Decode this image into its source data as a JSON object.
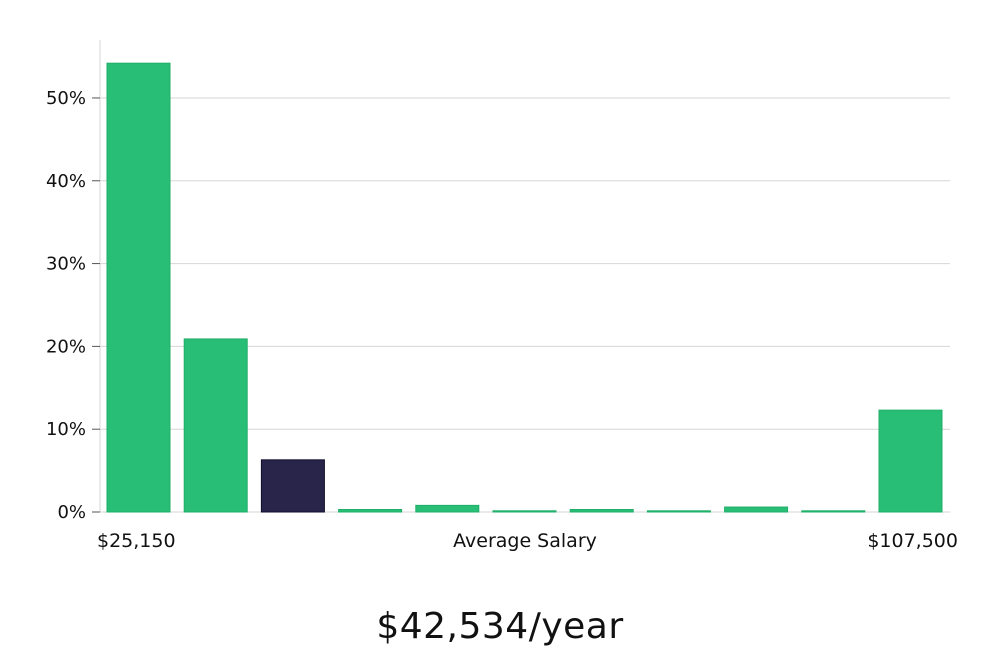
{
  "chart_data": {
    "type": "bar",
    "title": "",
    "ylabel": "",
    "xlabel": "Average Salary",
    "x_start_label": "$25,150",
    "x_end_label": "$107,500",
    "ylim": [
      0,
      57
    ],
    "yticks": [
      0,
      10,
      20,
      30,
      40,
      50
    ],
    "ytick_labels": [
      "0%",
      "10%",
      "20%",
      "30%",
      "40%",
      "50%"
    ],
    "grid": true,
    "values": [
      54.2,
      20.9,
      6.3,
      0.3,
      0.8,
      0.1,
      0.3,
      0.1,
      0.6,
      0.1,
      12.3
    ],
    "highlight_index": 2,
    "colors": {
      "bar": "#28be76",
      "bar_edge": "#1fae68",
      "highlight": "#29254a",
      "highlight_edge": "#0f0c2a",
      "grid": "#d6d6d6",
      "axis": "#d6d6d6"
    }
  },
  "salary_text": "$42,534/year"
}
